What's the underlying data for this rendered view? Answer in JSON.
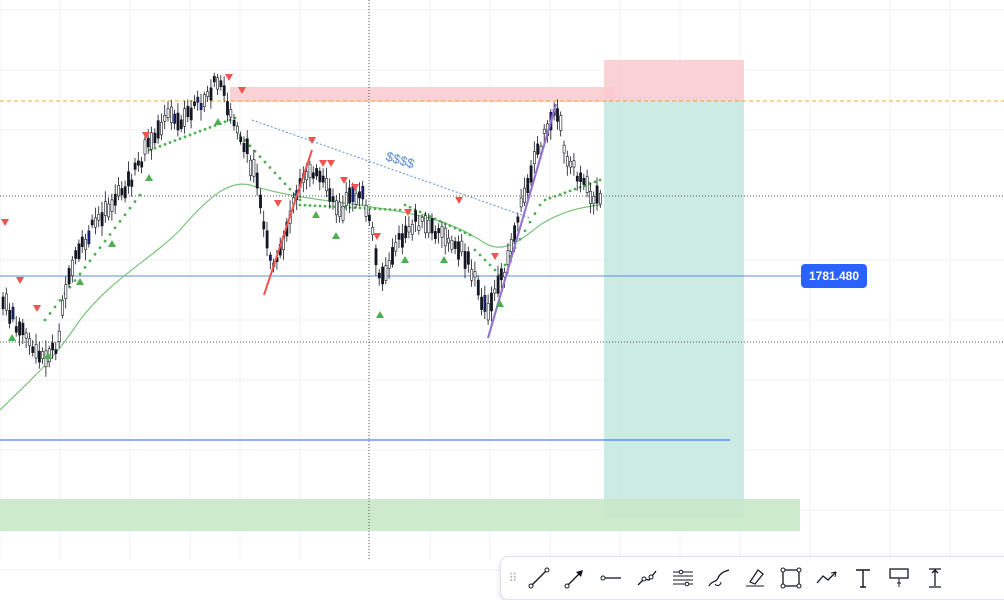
{
  "price_line": {
    "label": "1781.480",
    "tag_color": "#2962ff",
    "line_color": "#5b8dd8"
  },
  "trendline_annotation": "$$$$",
  "colors": {
    "stop_zone": "#f8c8cc",
    "target_zone": "#b8e3da",
    "support_zone": "#c5e6c5",
    "resistance_dashed": "#f5a623",
    "sell_marker": "#ef5350",
    "buy_marker": "#4caf50",
    "dots": "#4caf50",
    "ma": "#7cc47c"
  },
  "toolbar": {
    "tools": [
      {
        "name": "trend-line-tool",
        "icon": "trend-line-icon"
      },
      {
        "name": "arrow-tool",
        "icon": "arrow-icon"
      },
      {
        "name": "horizontal-ray-tool",
        "icon": "horizontal-ray-icon"
      },
      {
        "name": "info-line-tool",
        "icon": "info-line-icon"
      },
      {
        "name": "parallel-channel-tool",
        "icon": "parallel-channel-icon"
      },
      {
        "name": "brush-tool",
        "icon": "brush-icon"
      },
      {
        "name": "highlighter-tool",
        "icon": "highlighter-icon"
      },
      {
        "name": "rectangle-tool",
        "icon": "rectangle-icon"
      },
      {
        "name": "path-tool",
        "icon": "path-icon"
      },
      {
        "name": "text-tool",
        "icon": "text-icon"
      },
      {
        "name": "callout-tool",
        "icon": "callout-icon"
      },
      {
        "name": "price-range-tool",
        "icon": "price-range-icon"
      }
    ]
  }
}
